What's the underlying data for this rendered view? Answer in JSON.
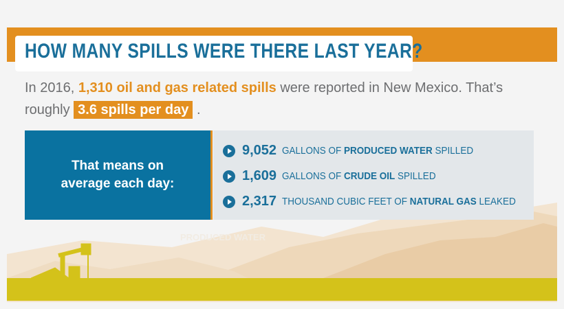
{
  "header": {
    "title": "HOW MANY SPILLS WERE THERE LAST YEAR?"
  },
  "intro": {
    "lead": "In 2016,",
    "spills": "1,310 oil and gas related spills",
    "middle": "were reported in New Mexico. That’s",
    "next": "roughly",
    "rate": "3.6 spills per day",
    "end": "."
  },
  "summary": {
    "label": "That means on average each day:",
    "items": [
      {
        "number": "9,052",
        "pre": "GALLONS OF",
        "bold": "PRODUCED WATER",
        "post": "SPILLED"
      },
      {
        "number": "1,609",
        "pre": "GALLONS OF",
        "bold": "CRUDE OIL",
        "post": "SPILLED"
      },
      {
        "number": "2,317",
        "pre": "THOUSAND CUBIC FEET OF",
        "bold": "NATURAL GAS",
        "post": "LEAKED"
      }
    ]
  },
  "landscape_label": "PRODUCED WATER"
}
